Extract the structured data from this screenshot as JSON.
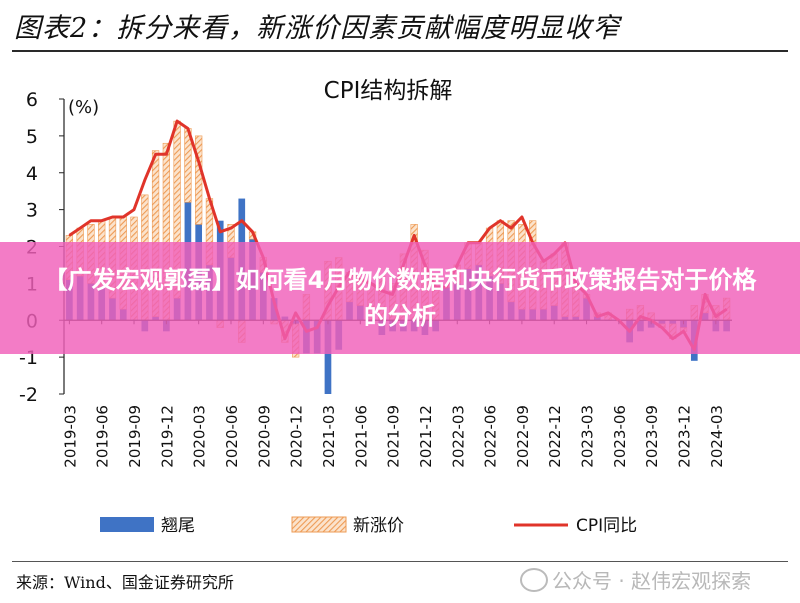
{
  "figure_title": "图表2：拆分来看，新涨价因素贡献幅度明显收窄",
  "source_text": "来源：Wind、国金证券研究所",
  "watermark_text": "公众号 · 赵伟宏观探索",
  "banner_text": "【广发宏观郭磊】如何看4月物价数据和央行货币政策报告对于价格的分析",
  "colors": {
    "tail": "#3f73c5",
    "new_hatch": "#f0a86a",
    "cpi_line": "#e0342a",
    "banner": "#f05fb9"
  },
  "chart_data": {
    "type": "bar",
    "title": "CPI结构拆解",
    "ylabel": "(%)",
    "ylim": [
      -2,
      6
    ],
    "yticks": [
      "6",
      "5",
      "4",
      "3",
      "2",
      "1",
      "0",
      "-1",
      "-2"
    ],
    "xtick_labels": [
      "2019-03",
      "2019-06",
      "2019-09",
      "2019-12",
      "2020-03",
      "2020-06",
      "2020-09",
      "2020-12",
      "2021-03",
      "2021-06",
      "2021-09",
      "2021-12",
      "2022-03",
      "2022-06",
      "2022-09",
      "2022-12",
      "2023-03",
      "2023-06",
      "2023-09",
      "2023-12",
      "2024-03"
    ],
    "legend": [
      "翘尾",
      "新涨价",
      "CPI同比"
    ],
    "categories": [
      "2019-03",
      "2019-04",
      "2019-05",
      "2019-06",
      "2019-07",
      "2019-08",
      "2019-09",
      "2019-10",
      "2019-11",
      "2019-12",
      "2020-01",
      "2020-02",
      "2020-03",
      "2020-04",
      "2020-05",
      "2020-06",
      "2020-07",
      "2020-08",
      "2020-09",
      "2020-10",
      "2020-11",
      "2020-12",
      "2021-01",
      "2021-02",
      "2021-03",
      "2021-04",
      "2021-05",
      "2021-06",
      "2021-07",
      "2021-08",
      "2021-09",
      "2021-10",
      "2021-11",
      "2021-12",
      "2022-01",
      "2022-02",
      "2022-03",
      "2022-04",
      "2022-05",
      "2022-06",
      "2022-07",
      "2022-08",
      "2022-09",
      "2022-10",
      "2022-11",
      "2022-12",
      "2023-01",
      "2023-02",
      "2023-03",
      "2023-04",
      "2023-05",
      "2023-06",
      "2023-07",
      "2023-08",
      "2023-09",
      "2023-10",
      "2023-11",
      "2023-12",
      "2024-01",
      "2024-02",
      "2024-03",
      "2024-04"
    ],
    "series": [
      {
        "name": "翘尾",
        "values": [
          1.1,
          1.2,
          1.0,
          0.9,
          0.6,
          0.3,
          0.0,
          -0.3,
          0.1,
          -0.3,
          0.6,
          3.2,
          2.6,
          1.5,
          2.7,
          1.7,
          3.3,
          2.2,
          1.3,
          0.6,
          0.1,
          -0.1,
          -0.9,
          -0.9,
          -2.0,
          -0.8,
          0.5,
          0.4,
          0.0,
          -0.4,
          -0.3,
          -0.3,
          -0.3,
          -0.4,
          -0.3,
          0.9,
          1.0,
          1.4,
          1.5,
          1.2,
          1.0,
          0.5,
          0.3,
          0.3,
          0.3,
          0.4,
          0.1,
          0.1,
          0.6,
          0.1,
          0.0,
          0.0,
          -0.6,
          -0.3,
          -0.2,
          -0.1,
          -0.1,
          -0.2,
          -1.1,
          0.2,
          -0.3,
          -0.3
        ]
      },
      {
        "name": "新涨价",
        "values": [
          1.2,
          1.3,
          1.6,
          1.8,
          2.2,
          2.5,
          2.8,
          3.4,
          4.5,
          4.8,
          4.8,
          2.0,
          2.4,
          1.8,
          -0.2,
          0.9,
          -0.6,
          0.2,
          0.4,
          -0.1,
          -0.6,
          -0.9,
          0.7,
          0.0,
          1.6,
          1.7,
          0.8,
          0.8,
          1.0,
          1.2,
          1.0,
          1.8,
          2.6,
          1.9,
          1.2,
          0.0,
          0.5,
          0.7,
          0.6,
          1.3,
          1.7,
          2.2,
          2.3,
          2.4,
          1.3,
          1.4,
          2.0,
          0.9,
          0.1,
          0.1,
          0.2,
          0.0,
          0.3,
          0.4,
          0.2,
          -0.1,
          -0.4,
          -0.1,
          0.4,
          0.5,
          0.4,
          0.6
        ]
      },
      {
        "name": "CPI同比",
        "values": [
          2.3,
          2.5,
          2.7,
          2.7,
          2.8,
          2.8,
          3.0,
          3.8,
          4.5,
          4.5,
          5.4,
          5.2,
          4.3,
          3.3,
          2.4,
          2.5,
          2.7,
          2.4,
          1.7,
          0.5,
          -0.5,
          0.2,
          -0.3,
          -0.2,
          0.4,
          0.9,
          1.3,
          1.1,
          1.0,
          0.8,
          0.7,
          1.5,
          2.3,
          1.5,
          0.9,
          0.9,
          1.5,
          2.1,
          2.1,
          2.5,
          2.7,
          2.5,
          2.8,
          2.1,
          1.6,
          1.8,
          2.1,
          1.0,
          0.7,
          0.1,
          0.2,
          0.0,
          -0.3,
          0.1,
          0.0,
          -0.2,
          -0.5,
          -0.3,
          -0.8,
          0.7,
          0.1,
          0.3
        ]
      }
    ]
  }
}
